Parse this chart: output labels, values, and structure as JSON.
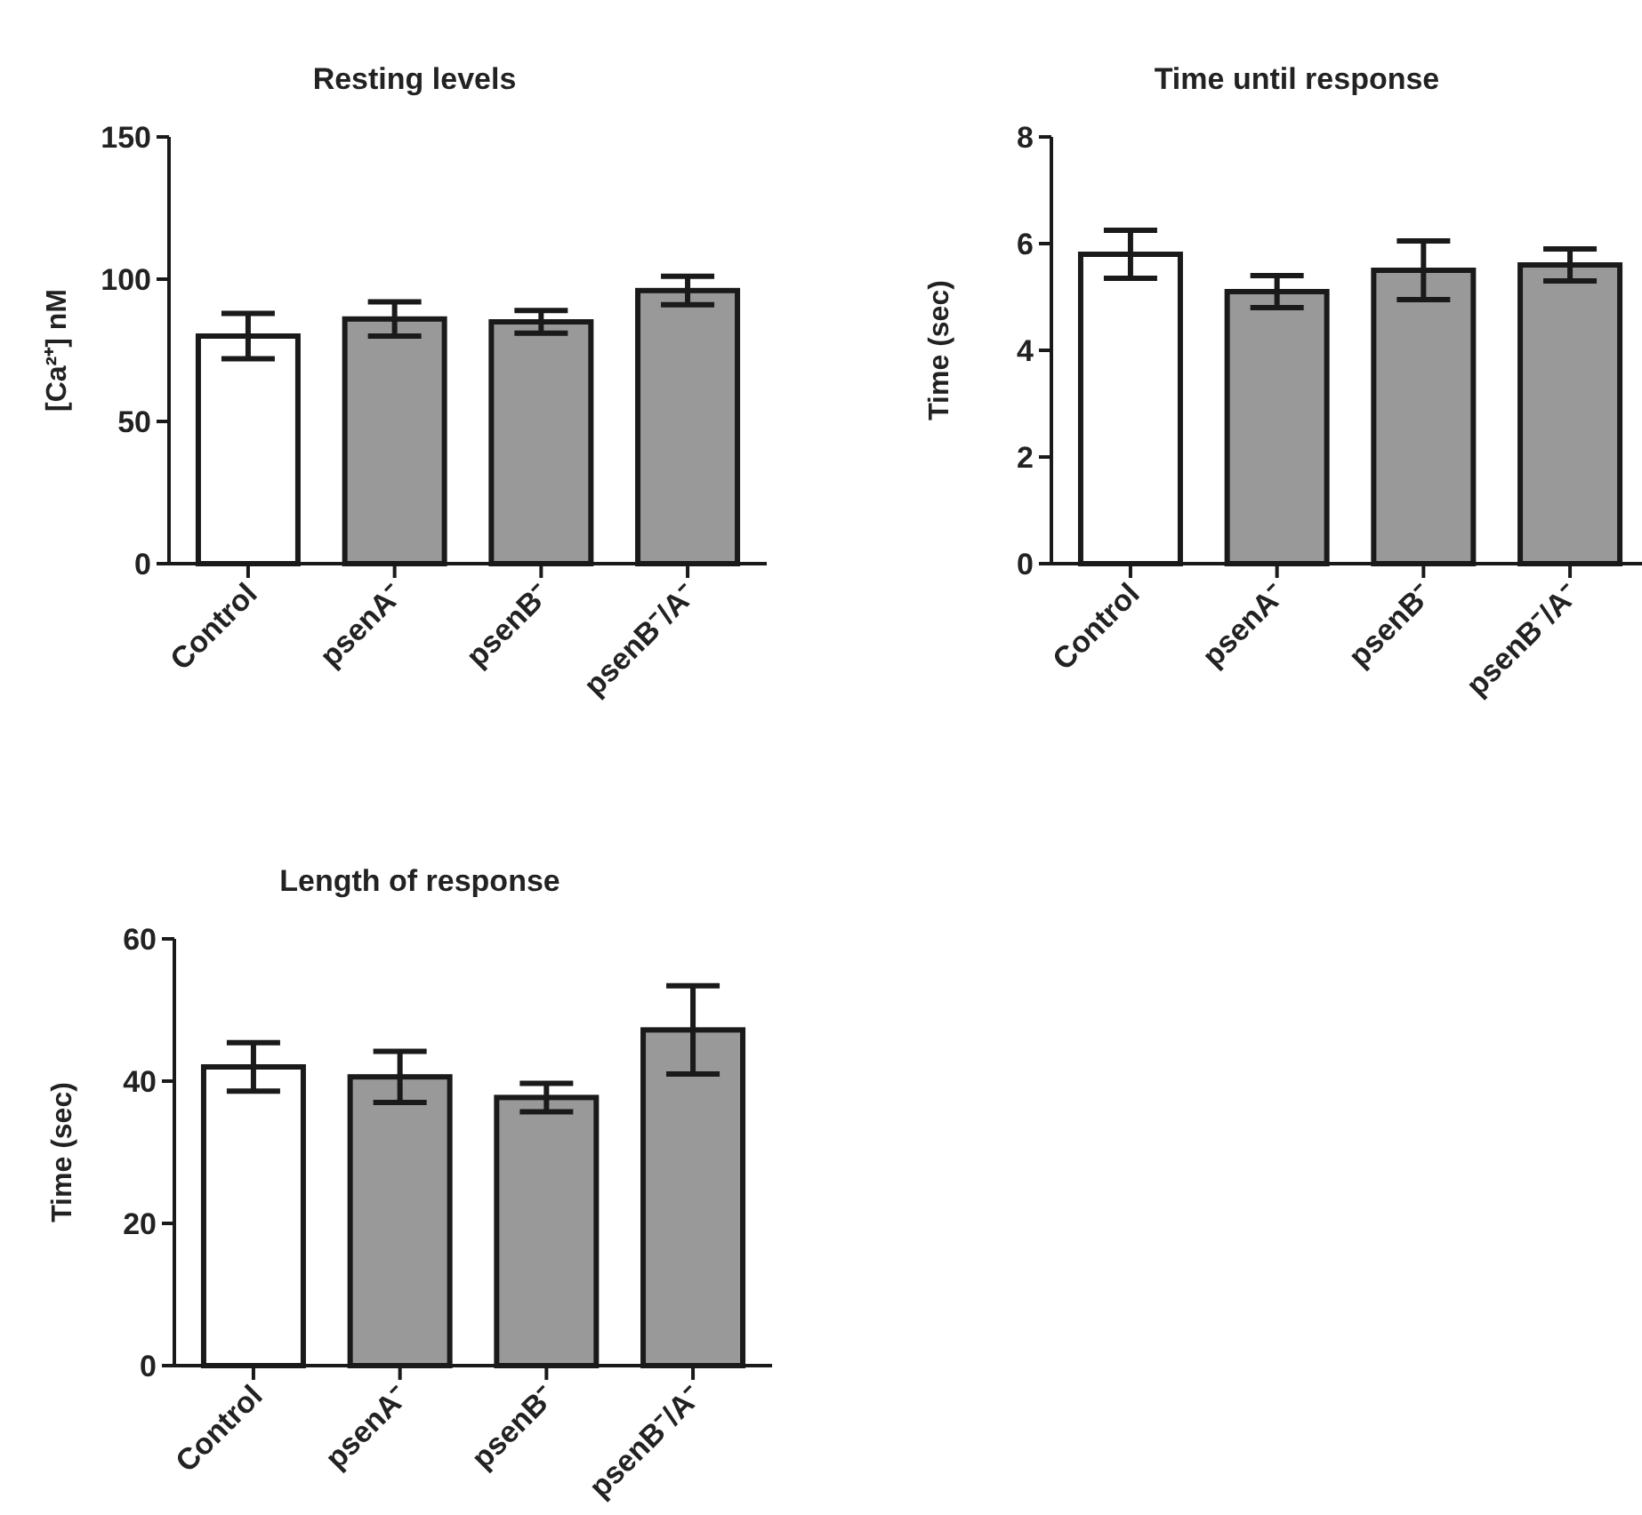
{
  "chart_data": [
    {
      "type": "bar",
      "title": "Resting levels",
      "ylabel": "[Ca²⁺] nM",
      "categories": [
        "Control",
        "psenA⁻",
        "psenB⁻",
        "psenB⁻/A⁻"
      ],
      "values": [
        80,
        86,
        85,
        96
      ],
      "errors": [
        8,
        6,
        4,
        5
      ],
      "colors": [
        "#ffffff",
        "#999999",
        "#999999",
        "#999999"
      ],
      "ylim": [
        0,
        150
      ],
      "yticks": [
        0,
        50,
        100,
        150
      ]
    },
    {
      "type": "bar",
      "title": "Time until response",
      "ylabel": "Time (sec)",
      "categories": [
        "Control",
        "psenA⁻",
        "psenB⁻",
        "psenB⁻/A⁻"
      ],
      "values": [
        5.8,
        5.1,
        5.5,
        5.6
      ],
      "errors": [
        0.45,
        0.3,
        0.55,
        0.3
      ],
      "colors": [
        "#ffffff",
        "#999999",
        "#999999",
        "#999999"
      ],
      "ylim": [
        0,
        8
      ],
      "yticks": [
        0,
        2,
        4,
        6,
        8
      ]
    },
    {
      "type": "bar",
      "title": "Length of response",
      "ylabel": "Time (sec)",
      "categories": [
        "Control",
        "psenA⁻",
        "psenB⁻",
        "psenB⁻/A⁻"
      ],
      "values": [
        42,
        40.6,
        37.7,
        47.2
      ],
      "errors": [
        3.4,
        3.6,
        2,
        6.2
      ],
      "colors": [
        "#ffffff",
        "#999999",
        "#999999",
        "#999999"
      ],
      "ylim": [
        0,
        60
      ],
      "yticks": [
        0,
        20,
        40,
        60
      ]
    }
  ]
}
